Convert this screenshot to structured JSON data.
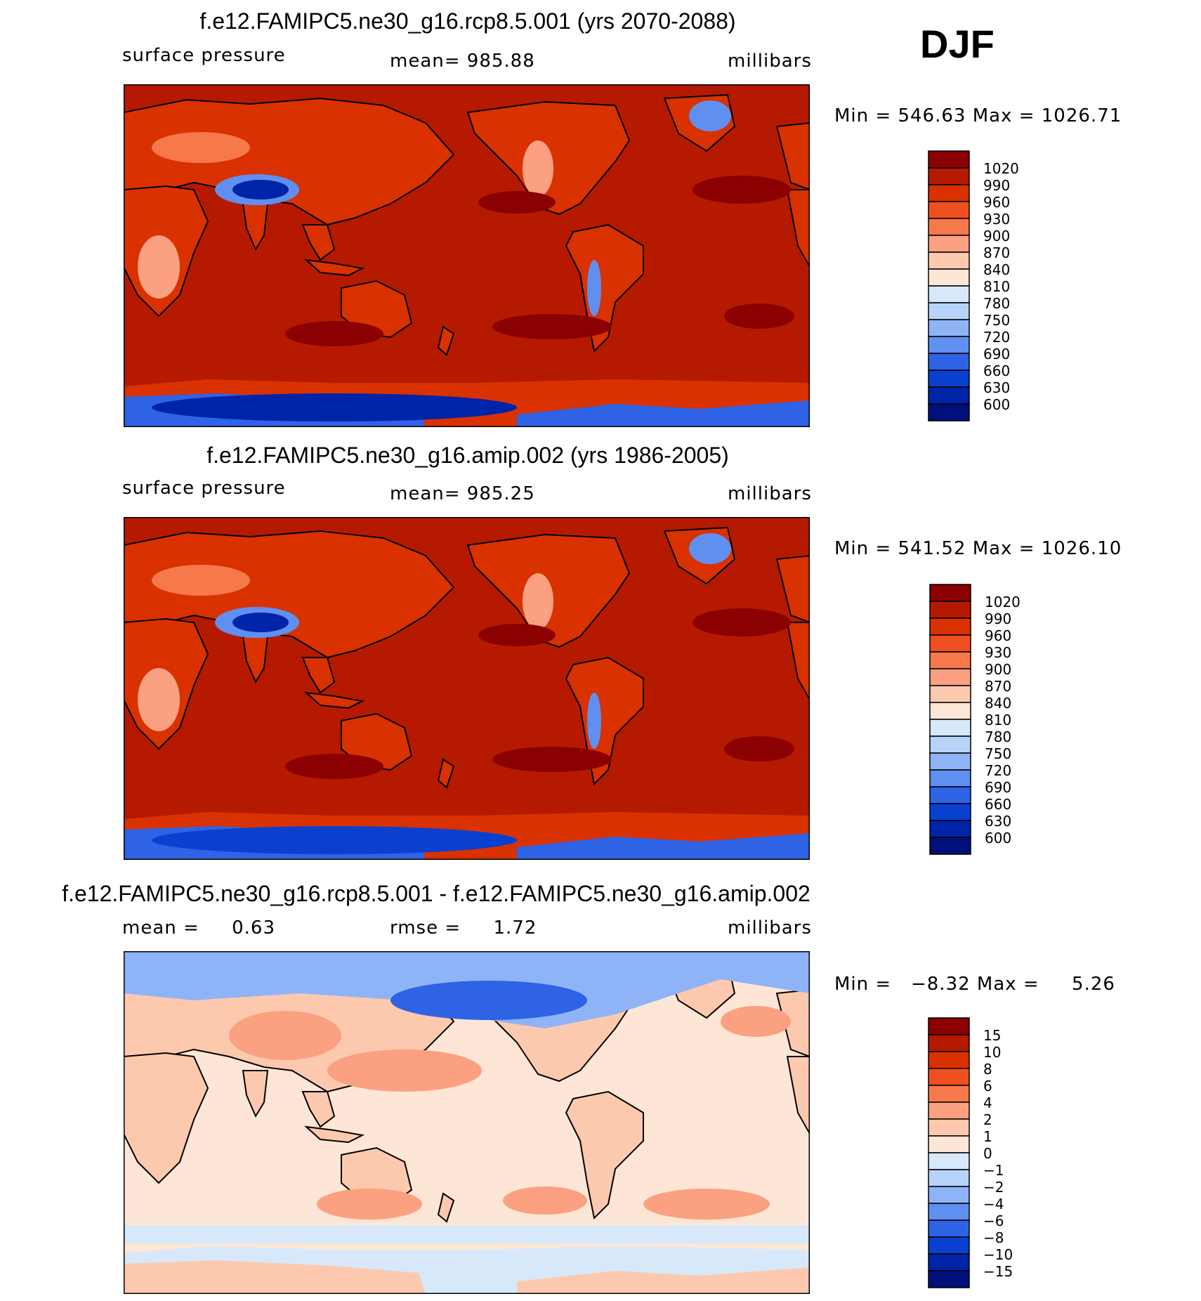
{
  "season": "DJF",
  "panels": [
    {
      "title": "f.e12.FAMIPC5.ne30_g16.rcp8.5.001 (yrs 2070-2088)",
      "left_label": "surface pressure",
      "center_label": "mean= 985.88",
      "units": "millibars",
      "minmax": "Min = 546.63 Max = 1026.71",
      "colorbar_labels": [
        "1020",
        "990",
        "960",
        "930",
        "900",
        "870",
        "840",
        "810",
        "780",
        "750",
        "720",
        "690",
        "660",
        "630",
        "600"
      ],
      "colorbar_colors": [
        "#8b0000",
        "#b51a00",
        "#d93100",
        "#f0501f",
        "#f7784a",
        "#fba080",
        "#fdc9ae",
        "#fee6d6",
        "#d7e8fb",
        "#b8d3fa",
        "#8fb3f7",
        "#5f8ff0",
        "#2e63e6",
        "#0a40d0",
        "#0024a8",
        "#00107a"
      ],
      "fields": {
        "background": "#b51a00",
        "continent": "#d93100",
        "continent_light": "#f7784a",
        "highland": "#fba080",
        "plateau": "#0024a8",
        "plateau_edge": "#5f8ff0",
        "antarctic": "#2e63e6",
        "antarctic_deep": "#0024a8",
        "ring": "#d93100",
        "high_cell": "#8b0000",
        "greenland": "#5f8ff0"
      }
    },
    {
      "title": "f.e12.FAMIPC5.ne30_g16.amip.002 (yrs 1986-2005)",
      "left_label": "surface pressure",
      "center_label": "mean= 985.25",
      "units": "millibars",
      "minmax": "Min = 541.52 Max = 1026.10",
      "colorbar_labels": [
        "1020",
        "990",
        "960",
        "930",
        "900",
        "870",
        "840",
        "810",
        "780",
        "750",
        "720",
        "690",
        "660",
        "630",
        "600"
      ],
      "colorbar_colors": [
        "#8b0000",
        "#b51a00",
        "#d93100",
        "#f0501f",
        "#f7784a",
        "#fba080",
        "#fdc9ae",
        "#fee6d6",
        "#d7e8fb",
        "#b8d3fa",
        "#8fb3f7",
        "#5f8ff0",
        "#2e63e6",
        "#0a40d0",
        "#0024a8",
        "#00107a"
      ],
      "fields": {
        "background": "#b51a00",
        "continent": "#d93100",
        "continent_light": "#f7784a",
        "highland": "#fba080",
        "plateau": "#0024a8",
        "plateau_edge": "#5f8ff0",
        "antarctic": "#2e63e6",
        "antarctic_deep": "#0a40d0",
        "ring": "#d93100",
        "high_cell": "#8b0000",
        "greenland": "#5f8ff0"
      }
    },
    {
      "title": "f.e12.FAMIPC5.ne30_g16.rcp8.5.001 - f.e12.FAMIPC5.ne30_g16.amip.002",
      "left_label": "mean =     0.63",
      "center_label": "rmse =     1.72",
      "units": "millibars",
      "minmax": "Min =   −8.32 Max =     5.26",
      "colorbar_labels": [
        "15",
        "10",
        "8",
        "6",
        "4",
        "2",
        "1",
        "0",
        "−1",
        "−2",
        "−4",
        "−6",
        "−8",
        "−10",
        "−15"
      ],
      "colorbar_colors": [
        "#8b0000",
        "#b51a00",
        "#d93100",
        "#f0501f",
        "#f7784a",
        "#fba080",
        "#fdc9ae",
        "#fee6d6",
        "#d7e8fb",
        "#b8d3fa",
        "#8fb3f7",
        "#5f8ff0",
        "#2e63e6",
        "#0a40d0",
        "#0024a8",
        "#00107a"
      ],
      "fields": {
        "background": "#fee6d6",
        "continent": "#fdc9ae",
        "arctic": "#8fb3f7",
        "arctic_deep": "#2e63e6",
        "pos_cell": "#fba080",
        "neg_band": "#d7e8fb",
        "antarctic_pos": "#fdc9ae"
      }
    }
  ]
}
